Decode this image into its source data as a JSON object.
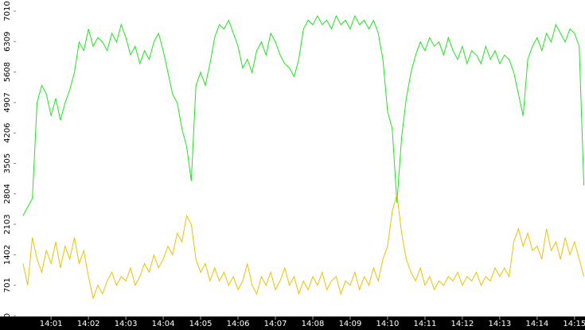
{
  "chart_data": {
    "type": "line",
    "x": [
      0.25,
      0.375,
      0.5,
      0.625,
      0.75,
      0.875,
      1.0,
      1.125,
      1.25,
      1.375,
      1.5,
      1.625,
      1.75,
      1.875,
      2.0,
      2.125,
      2.25,
      2.375,
      2.5,
      2.625,
      2.75,
      2.875,
      3.0,
      3.125,
      3.25,
      3.375,
      3.5,
      3.625,
      3.75,
      3.875,
      4.0,
      4.125,
      4.25,
      4.375,
      4.5,
      4.625,
      4.75,
      4.875,
      5.0,
      5.125,
      5.25,
      5.375,
      5.5,
      5.625,
      5.75,
      5.875,
      6.0,
      6.125,
      6.25,
      6.375,
      6.5,
      6.625,
      6.75,
      6.875,
      7.0,
      7.125,
      7.25,
      7.375,
      7.5,
      7.625,
      7.75,
      7.875,
      8.0,
      8.125,
      8.25,
      8.375,
      8.5,
      8.625,
      8.75,
      8.875,
      9.0,
      9.125,
      9.25,
      9.375,
      9.5,
      9.625,
      9.75,
      9.875,
      10.0,
      10.125,
      10.25,
      10.375,
      10.5,
      10.625,
      10.75,
      10.875,
      11.0,
      11.125,
      11.25,
      11.375,
      11.5,
      11.625,
      11.75,
      11.875,
      12.0,
      12.125,
      12.25,
      12.375,
      12.5,
      12.625,
      12.75,
      12.875,
      13.0,
      13.125,
      13.25,
      13.375,
      13.5,
      13.625,
      13.75,
      13.875,
      14.0,
      14.125,
      14.25,
      14.375,
      14.5,
      14.625,
      14.75,
      14.875,
      15.0,
      15.125,
      15.25
    ],
    "series": [
      {
        "color": "#1ee61e",
        "values": [
          2300,
          2500,
          2700,
          4900,
          5300,
          5100,
          4600,
          5000,
          4500,
          4900,
          5200,
          5600,
          6300,
          6100,
          6600,
          6200,
          6400,
          6300,
          6100,
          6500,
          6300,
          6700,
          6400,
          6000,
          6200,
          5800,
          6100,
          5900,
          6300,
          6500,
          6100,
          5600,
          5100,
          4900,
          4300,
          3900,
          3100,
          5300,
          5600,
          5300,
          5800,
          6400,
          6700,
          6600,
          6800,
          6500,
          6200,
          5700,
          5900,
          5600,
          6100,
          6300,
          6000,
          6500,
          6300,
          6000,
          5800,
          5700,
          5500,
          5900,
          6600,
          6800,
          6700,
          6900,
          6700,
          6800,
          6600,
          6900,
          6700,
          6800,
          6600,
          6900,
          6700,
          6800,
          6600,
          6800,
          6500,
          5900,
          4700,
          4300,
          2600,
          4100,
          5000,
          5600,
          6000,
          6300,
          6100,
          6400,
          6200,
          6300,
          6000,
          6400,
          6100,
          5900,
          6200,
          5800,
          6100,
          6000,
          5800,
          6200,
          5900,
          6100,
          5800,
          6000,
          5900,
          5600,
          5100,
          4600,
          5900,
          6200,
          6400,
          6100,
          6500,
          6300,
          6700,
          6500,
          6300,
          6600,
          6500,
          6200,
          3000
        ]
      },
      {
        "color": "#f0c000",
        "values": [
          1200,
          700,
          1800,
          1300,
          1000,
          1500,
          1200,
          1700,
          1100,
          1600,
          1300,
          1800,
          1200,
          1500,
          900,
          400,
          700,
          500,
          800,
          1000,
          700,
          900,
          800,
          1100,
          700,
          900,
          1200,
          1000,
          1400,
          1100,
          1300,
          1600,
          1400,
          1900,
          1700,
          2300,
          2100,
          1300,
          1000,
          1200,
          800,
          1100,
          800,
          1000,
          700,
          900,
          600,
          800,
          1200,
          700,
          500,
          900,
          700,
          1000,
          600,
          800,
          1100,
          700,
          900,
          500,
          800,
          600,
          900,
          700,
          1000,
          600,
          800,
          900,
          500,
          800,
          700,
          1000,
          600,
          900,
          700,
          1100,
          800,
          1300,
          1600,
          2400,
          2800,
          1900,
          1300,
          1000,
          800,
          1100,
          700,
          900,
          600,
          800,
          700,
          900,
          800,
          1000,
          700,
          900,
          800,
          1000,
          700,
          900,
          800,
          1100,
          900,
          1100,
          900,
          1700,
          2000,
          1600,
          1900,
          1500,
          1600,
          1300,
          2000,
          1500,
          1700,
          1300,
          1800,
          1400,
          1700,
          1300,
          900
        ]
      }
    ],
    "xlim": [
      0.06,
      15.28
    ],
    "ylim": [
      0,
      7266
    ],
    "xticks": [
      {
        "value": 1,
        "label": "14:01"
      },
      {
        "value": 2,
        "label": "14:02"
      },
      {
        "value": 3,
        "label": "14:03"
      },
      {
        "value": 4,
        "label": "14:04"
      },
      {
        "value": 5,
        "label": "14:05"
      },
      {
        "value": 6,
        "label": "14:06"
      },
      {
        "value": 7,
        "label": "14:07"
      },
      {
        "value": 8,
        "label": "14:08"
      },
      {
        "value": 9,
        "label": "14:09"
      },
      {
        "value": 10,
        "label": "14:10"
      },
      {
        "value": 11,
        "label": "14:11"
      },
      {
        "value": 12,
        "label": "14:12"
      },
      {
        "value": 13,
        "label": "14:13"
      },
      {
        "value": 14,
        "label": "14:14"
      },
      {
        "value": 15,
        "label": "14:15"
      }
    ],
    "yticks": [
      0,
      701,
      1402,
      2103,
      2804,
      3505,
      4206,
      4907,
      5608,
      6309,
      7010
    ]
  }
}
